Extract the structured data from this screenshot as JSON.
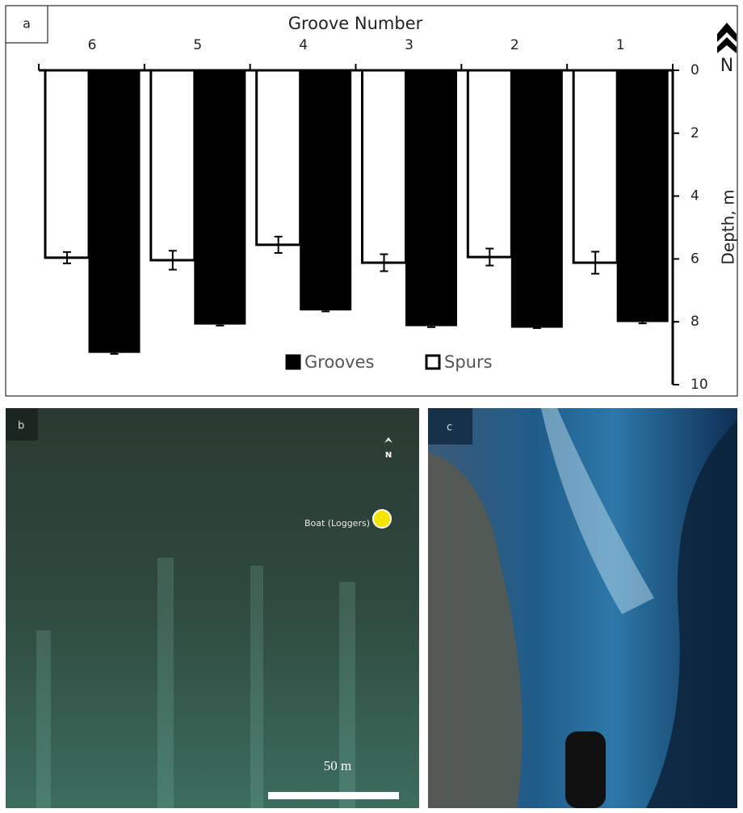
{
  "chart_data": {
    "type": "bar",
    "panel_label": "a",
    "title": "Groove Number",
    "y_label": "Depth, m",
    "north": "N",
    "categories": [
      "6",
      "5",
      "4",
      "3",
      "2",
      "1"
    ],
    "series": [
      {
        "name": "Spurs",
        "color": "#ffffff",
        "values": [
          5.96,
          6.04,
          5.55,
          6.12,
          5.94,
          6.12
        ],
        "errors": [
          0.18,
          0.3,
          0.26,
          0.27,
          0.27,
          0.35
        ]
      },
      {
        "name": "Grooves",
        "color": "#000000",
        "values": [
          8.95,
          8.05,
          7.6,
          8.1,
          8.15,
          7.97
        ],
        "errors": [
          0.07,
          0.07,
          0.07,
          0.07,
          0.05,
          0.08
        ]
      }
    ],
    "ylim": [
      0,
      10
    ],
    "yticks": [
      0,
      2,
      4,
      6,
      8,
      10
    ],
    "y_inverted": true,
    "legend": [
      "Grooves",
      "Spurs"
    ]
  },
  "panels": {
    "b": {
      "label": "b",
      "annotation": "Boat (Loggers)",
      "scale": "50 m",
      "north": "N"
    },
    "c": {
      "label": "c"
    }
  }
}
